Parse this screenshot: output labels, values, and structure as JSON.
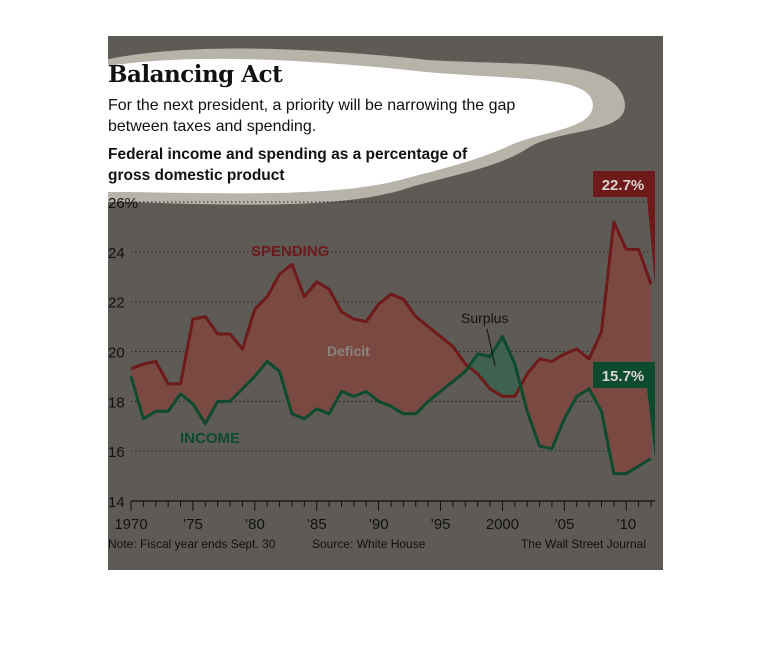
{
  "title": "Balancing Act",
  "subtitle": "For the next president, a priority will be narrowing the gap between taxes and spending.",
  "chart_title": "Federal income and spending as a percentage of gross domestic product",
  "footer": {
    "note": "Note: Fiscal year ends Sept. 30",
    "source": "Source: White House",
    "credit": "The Wall Street Journal"
  },
  "colors": {
    "panel": "#5e5b56",
    "spending": "#6e1a1a",
    "income": "#0e4a2e",
    "deficit_fill": "#7a4a42",
    "surplus_fill": "#3f6150",
    "grid": "#2a2a2a"
  },
  "chart_data": {
    "type": "line",
    "ylim": [
      14,
      26
    ],
    "yticks": [
      14,
      16,
      18,
      20,
      22,
      24,
      26
    ],
    "ytick_labels": [
      "14",
      "16",
      "18",
      "20",
      "22",
      "24",
      "26%"
    ],
    "xlim": [
      1970,
      2012
    ],
    "xticks": [
      1970,
      1975,
      1980,
      1985,
      1990,
      1995,
      2000,
      2005,
      2010
    ],
    "xtick_labels": [
      "1970",
      "’75",
      "’80",
      "’85",
      "’90",
      "’95",
      "2000",
      "’05",
      "’10"
    ],
    "x": [
      1970,
      1971,
      1972,
      1973,
      1974,
      1975,
      1976,
      1977,
      1978,
      1979,
      1980,
      1981,
      1982,
      1983,
      1984,
      1985,
      1986,
      1987,
      1988,
      1989,
      1990,
      1991,
      1992,
      1993,
      1994,
      1995,
      1996,
      1997,
      1998,
      1999,
      2000,
      2001,
      2002,
      2003,
      2004,
      2005,
      2006,
      2007,
      2008,
      2009,
      2010,
      2011,
      2012
    ],
    "series": [
      {
        "name": "SPENDING",
        "values": [
          19.3,
          19.5,
          19.6,
          18.7,
          18.7,
          21.3,
          21.4,
          20.7,
          20.7,
          20.1,
          21.7,
          22.2,
          23.1,
          23.5,
          22.2,
          22.8,
          22.5,
          21.6,
          21.3,
          21.2,
          21.9,
          22.3,
          22.1,
          21.4,
          21.0,
          20.6,
          20.2,
          19.5,
          19.1,
          18.5,
          18.2,
          18.2,
          19.1,
          19.7,
          19.6,
          19.9,
          20.1,
          19.7,
          20.8,
          25.2,
          24.1,
          24.1,
          22.7
        ]
      },
      {
        "name": "INCOME",
        "values": [
          19.0,
          17.3,
          17.6,
          17.6,
          18.3,
          17.9,
          17.1,
          18.0,
          18.0,
          18.5,
          19.0,
          19.6,
          19.2,
          17.5,
          17.3,
          17.7,
          17.5,
          18.4,
          18.2,
          18.4,
          18.0,
          17.8,
          17.5,
          17.5,
          18.0,
          18.4,
          18.8,
          19.2,
          19.9,
          19.8,
          20.6,
          19.5,
          17.6,
          16.2,
          16.1,
          17.3,
          18.2,
          18.5,
          17.6,
          15.1,
          15.1,
          15.4,
          15.7
        ]
      }
    ],
    "annotations": [
      "Deficit",
      "Surplus"
    ],
    "end_labels": [
      "22.7%",
      "15.7%"
    ]
  }
}
